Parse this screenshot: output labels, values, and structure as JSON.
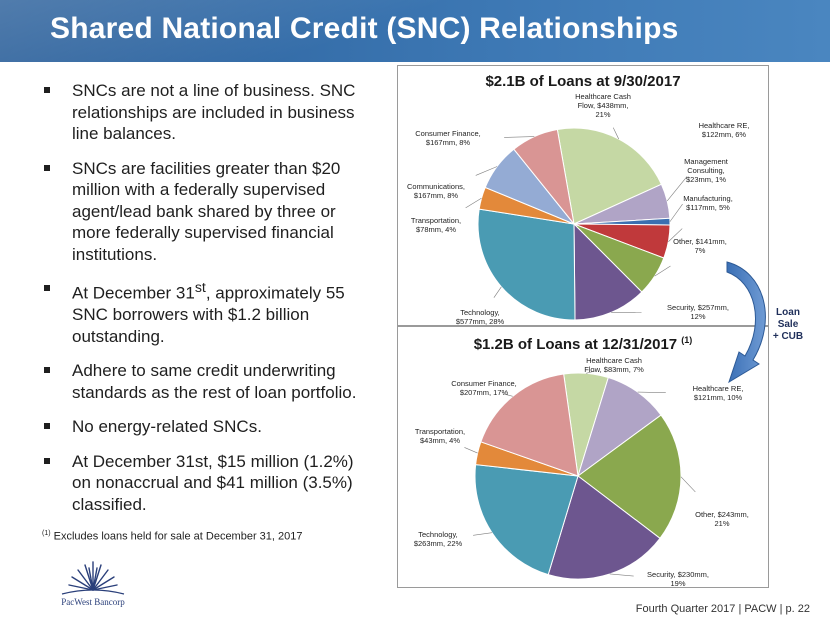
{
  "title": "Shared National Credit (SNC) Relationships",
  "bullets": [
    {
      "pre": "SNCs are not a line of business.  SNC relationships are included in business line balances.",
      "sup": "",
      "post": ""
    },
    {
      "pre": "SNCs are facilities greater than $20 million with a federally supervised agent/lead bank shared by three or more federally supervised financial institutions.",
      "sup": "",
      "post": ""
    },
    {
      "pre": "At December 31",
      "sup": "st",
      "post": ", approximately 55 SNC borrowers with $1.2 billion outstanding."
    },
    {
      "pre": "Adhere to same credit underwriting standards as the rest of loan portfolio.",
      "sup": "",
      "post": ""
    },
    {
      "pre": "No energy-related SNCs.",
      "sup": "",
      "post": ""
    },
    {
      "pre": "At December 31st, $15 million (1.2%) on nonaccrual and $41 million (3.5%) classified.",
      "sup": "",
      "post": ""
    }
  ],
  "footnote": {
    "marker": "(1)",
    "text": "Excludes loans held for sale at December 31, 2017"
  },
  "logo_text": "PacWest Bancorp",
  "footer": "Fourth Quarter 2017 | PACW | p. 22",
  "arrow_label": [
    "Loan",
    "Sale",
    "+ CUB"
  ],
  "chart_data": [
    {
      "type": "pie",
      "title": "$2.1B of Loans at 9/30/2017",
      "title_sup": "",
      "slices": [
        {
          "name": "Healthcare Cash Flow",
          "value": 438,
          "percent": 21,
          "label": [
            "Healthcare Cash",
            "Flow, $438mm,",
            "21%"
          ],
          "color": "#c5d8a4"
        },
        {
          "name": "Healthcare RE",
          "value": 122,
          "percent": 6,
          "label": [
            "Healthcare RE,",
            "$122mm, 6%"
          ],
          "color": "#b0a4c6"
        },
        {
          "name": "Management Consulting",
          "value": 23,
          "percent": 1,
          "label": [
            "Management",
            "Consulting,",
            "$23mm, 1%"
          ],
          "color": "#3b6fb0"
        },
        {
          "name": "Manufacturing",
          "value": 117,
          "percent": 5,
          "label": [
            "Manufacturing,",
            "$117mm, 5%"
          ],
          "color": "#c0393b"
        },
        {
          "name": "Other",
          "value": 141,
          "percent": 7,
          "label": [
            "Other, $141mm,",
            "7%"
          ],
          "color": "#8aa84e"
        },
        {
          "name": "Security",
          "value": 257,
          "percent": 12,
          "label": [
            "Security, $257mm,",
            "12%"
          ],
          "color": "#6d568f"
        },
        {
          "name": "Technology",
          "value": 577,
          "percent": 28,
          "label": [
            "Technology,",
            "$577mm, 28%"
          ],
          "color": "#4a9bb3"
        },
        {
          "name": "Transportation",
          "value": 78,
          "percent": 4,
          "label": [
            "Transportation,",
            "$78mm, 4%"
          ],
          "color": "#e3893a"
        },
        {
          "name": "Communications",
          "value": 167,
          "percent": 8,
          "label": [
            "Communications,",
            "$167mm, 8%"
          ],
          "color": "#94abd4"
        },
        {
          "name": "Consumer Finance",
          "value": 167,
          "percent": 8,
          "label": [
            "Consumer Finance,",
            "$167mm, 8%"
          ],
          "color": "#d99594"
        }
      ]
    },
    {
      "type": "pie",
      "title": "$1.2B of Loans at 12/31/2017",
      "title_sup": "(1)",
      "slices": [
        {
          "name": "Healthcare Cash Flow",
          "value": 83,
          "percent": 7,
          "label": [
            "Healthcare Cash",
            "Flow, $83mm, 7%"
          ],
          "color": "#c5d8a4"
        },
        {
          "name": "Healthcare RE",
          "value": 121,
          "percent": 10,
          "label": [
            "Healthcare RE,",
            "$121mm, 10%"
          ],
          "color": "#b0a4c6"
        },
        {
          "name": "Other",
          "value": 243,
          "percent": 21,
          "label": [
            "Other, $243mm,",
            "21%"
          ],
          "color": "#8aa84e"
        },
        {
          "name": "Security",
          "value": 230,
          "percent": 19,
          "label": [
            "Security, $230mm,",
            "19%"
          ],
          "color": "#6d568f"
        },
        {
          "name": "Technology",
          "value": 263,
          "percent": 22,
          "label": [
            "Technology,",
            "$263mm, 22%"
          ],
          "color": "#4a9bb3"
        },
        {
          "name": "Transportation",
          "value": 43,
          "percent": 4,
          "label": [
            "Transportation,",
            "$43mm, 4%"
          ],
          "color": "#e3893a"
        },
        {
          "name": "Consumer Finance",
          "value": 207,
          "percent": 17,
          "label": [
            "Consumer Finance,",
            "$207mm, 17%"
          ],
          "color": "#d99594"
        }
      ]
    }
  ]
}
